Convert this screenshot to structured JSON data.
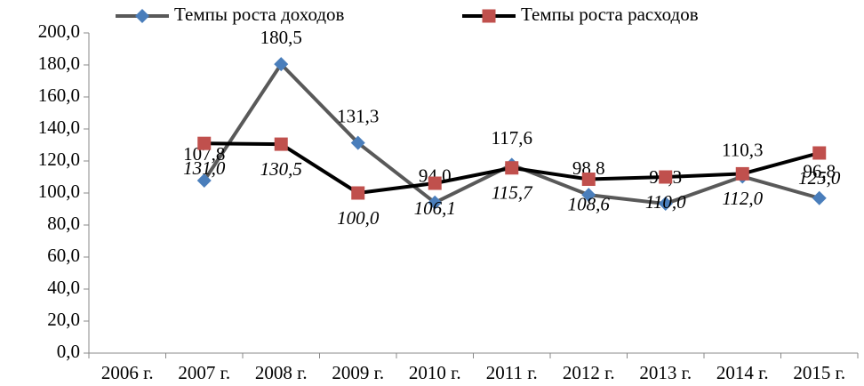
{
  "chart_data": {
    "type": "line",
    "categories": [
      "2006 г.",
      "2007 г.",
      "2008 г.",
      "2009 г.",
      "2010 г.",
      "2011 г.",
      "2012 г.",
      "2013 г.",
      "2014 г.",
      "2015 г."
    ],
    "series": [
      {
        "name": "Темпы роста доходов",
        "color": "#4a7ebb",
        "line_color": "#595959",
        "marker": "diamond",
        "values": [
          null,
          107.8,
          180.5,
          131.3,
          94.0,
          117.6,
          98.8,
          93.3,
          110.3,
          96.8
        ],
        "value_labels": [
          null,
          "107,8",
          "180,5",
          "131,3",
          "94,0",
          "117,6",
          "98,8",
          "93,3",
          "110,3",
          "96,8"
        ]
      },
      {
        "name": "Темпы роста расходов",
        "color": "#c0504d",
        "line_color": "#000000",
        "marker": "square",
        "values": [
          null,
          131.0,
          130.5,
          100.0,
          106.1,
          115.7,
          108.6,
          110.0,
          112.0,
          125.0
        ],
        "value_labels": [
          null,
          "131,0",
          "130,5",
          "100,0",
          "106,1",
          "115,7",
          "108,6",
          "110,0",
          "112,0",
          "125,0"
        ]
      }
    ],
    "ylim": [
      0,
      200
    ],
    "yticks": [
      {
        "value": 0,
        "label": "0,0"
      },
      {
        "value": 20,
        "label": "20,0"
      },
      {
        "value": 40,
        "label": "40,0"
      },
      {
        "value": 60,
        "label": "60,0"
      },
      {
        "value": 80,
        "label": "80,0"
      },
      {
        "value": 100,
        "label": "100,0"
      },
      {
        "value": 120,
        "label": "120,0"
      },
      {
        "value": 140,
        "label": "140,0"
      },
      {
        "value": 160,
        "label": "160,0"
      },
      {
        "value": 180,
        "label": "180,0"
      },
      {
        "value": 200,
        "label": "200,0"
      }
    ],
    "grid": false,
    "legend": "top"
  }
}
